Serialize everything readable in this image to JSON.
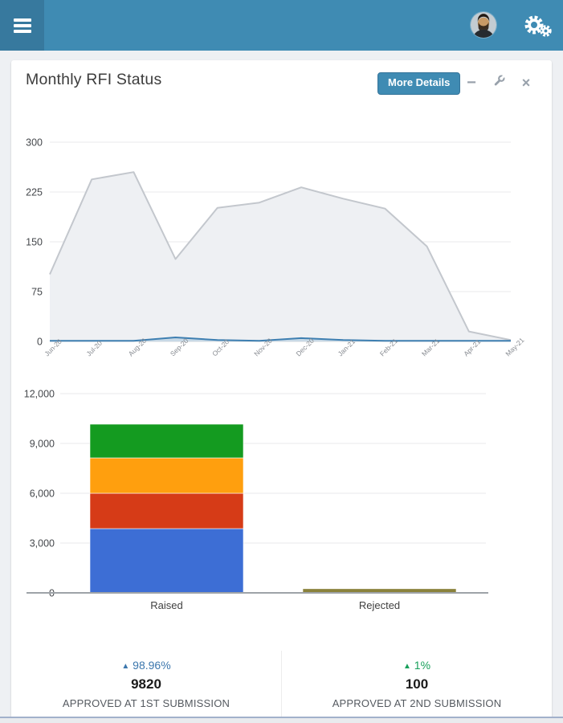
{
  "topbar": {
    "bg_color": "#3F8BB3",
    "toggle_bg_color": "#37799E"
  },
  "card": {
    "title": "Monthly RFI Status",
    "more_details_label": "More Details",
    "accent_color": "#3F8BB3"
  },
  "icons": {
    "menu_glyph": "hamburger-bars",
    "minimize_glyph": "−",
    "wrench_glyph": "wrench",
    "close_glyph": "×",
    "up_triangle_glyph": "▲",
    "cogs_glyph": "double-gear"
  },
  "chart_data": [
    {
      "type": "area",
      "x": [
        "Jun-20",
        "Jul-20",
        "Aug-20",
        "Sep-20",
        "Oct-20",
        "Nov-20",
        "Dec-20",
        "Jan-21",
        "Feb-21",
        "Mar-21",
        "Apr-21",
        "May-21"
      ],
      "series": [
        {
          "name": "rfi-monthly-total",
          "stroke": "#c3c7cd",
          "fill": "#eef0f3",
          "fill_opacity": 1,
          "values": [
            101,
            244,
            255,
            124,
            201,
            209,
            232,
            215,
            200,
            143,
            15,
            2
          ]
        },
        {
          "name": "rfi-monthly-secondary",
          "stroke": "#3e7fb1",
          "fill": "#aac6da",
          "fill_opacity": 0.55,
          "values": [
            1,
            1,
            1,
            6,
            2,
            1,
            5,
            2,
            1,
            1,
            1,
            1
          ]
        }
      ],
      "ylim": [
        0,
        300
      ],
      "yticks": [
        0,
        75,
        150,
        225,
        300
      ],
      "grid": true,
      "legend": "none"
    },
    {
      "type": "bar",
      "stacked": true,
      "categories": [
        "Raised",
        "Rejected"
      ],
      "series": [
        {
          "name": "raised-segment-1",
          "color": "#3D6ED5",
          "values": [
            3870,
            0
          ]
        },
        {
          "name": "raised-segment-2",
          "color": "#D63B17",
          "values": [
            2130,
            0
          ]
        },
        {
          "name": "raised-segment-3",
          "color": "#FF9F0E",
          "values": [
            2130,
            0
          ]
        },
        {
          "name": "raised-segment-4",
          "color": "#149B20",
          "values": [
            2030,
            0
          ]
        },
        {
          "name": "rejected",
          "color": "#8A823C",
          "values": [
            0,
            250
          ]
        }
      ],
      "ylim": [
        0,
        12000
      ],
      "yticks": [
        0,
        3000,
        6000,
        9000,
        12000
      ],
      "grid": true,
      "legend": "none"
    }
  ],
  "stats": [
    {
      "percent": "98.96%",
      "percent_color": "#3C77AD",
      "value": "9820",
      "label": "APPROVED AT 1ST SUBMISSION"
    },
    {
      "percent": "1%",
      "percent_color": "#18A05B",
      "value": "100",
      "label": "APPROVED AT 2ND SUBMISSION"
    }
  ]
}
